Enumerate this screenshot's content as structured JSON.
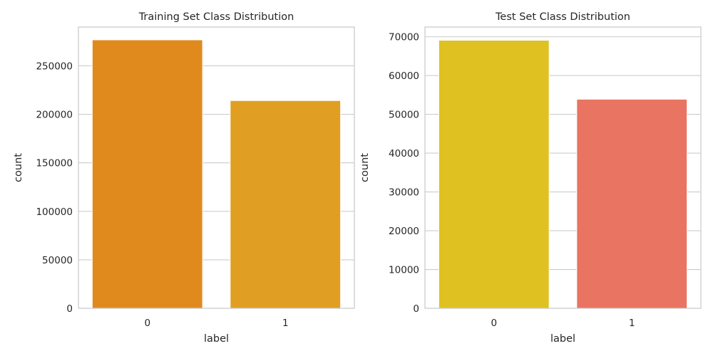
{
  "chart_data": [
    {
      "type": "bar",
      "title": "Training Set Class Distribution",
      "xlabel": "label",
      "ylabel": "count",
      "categories": [
        "0",
        "1"
      ],
      "values": [
        276800,
        214200
      ],
      "colors": [
        "#e08a1e",
        "#e09f22"
      ],
      "ylim": [
        0,
        290000
      ],
      "yticks": [
        0,
        50000,
        100000,
        150000,
        200000,
        250000
      ],
      "grid": true
    },
    {
      "type": "bar",
      "title": "Test Set Class Distribution",
      "xlabel": "label",
      "ylabel": "count",
      "categories": [
        "0",
        "1"
      ],
      "values": [
        69100,
        53900
      ],
      "colors": [
        "#e0c122",
        "#e87461"
      ],
      "ylim": [
        0,
        72500
      ],
      "yticks": [
        0,
        10000,
        20000,
        30000,
        40000,
        50000,
        60000,
        70000
      ],
      "grid": true
    }
  ]
}
